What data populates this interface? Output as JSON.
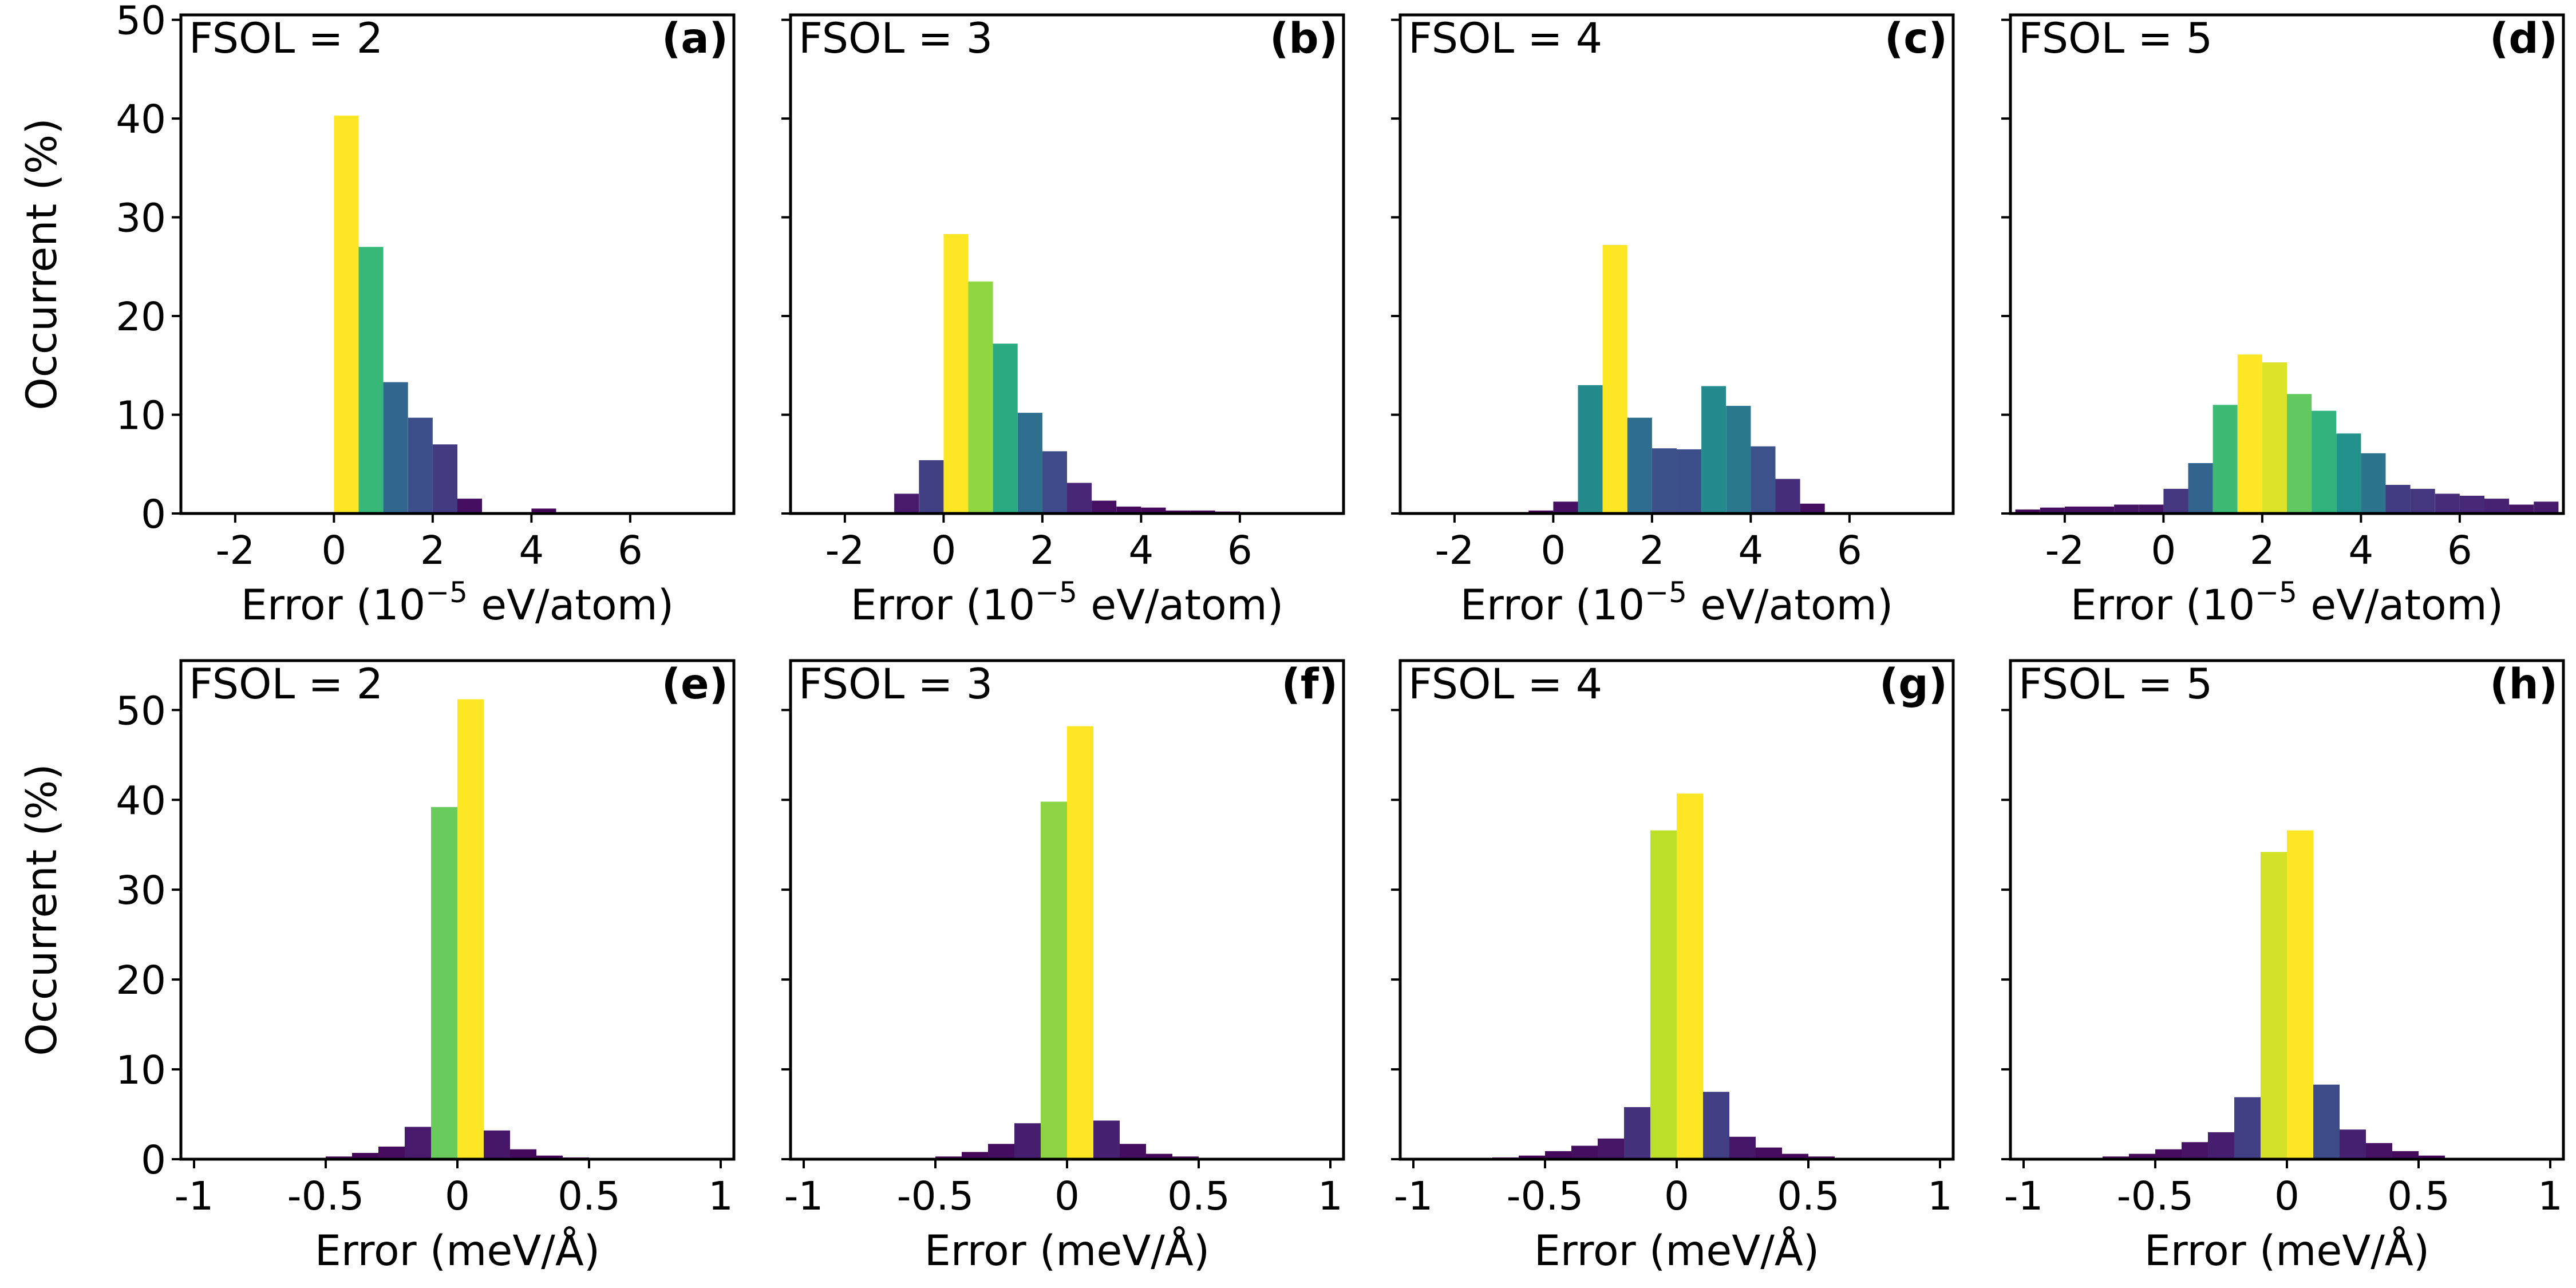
{
  "chart_data": [
    {
      "id": "a",
      "type": "bar",
      "annotation": "FSOL = 2",
      "panel_label": "(a)",
      "xlabel_prefix": "Error (10",
      "xlabel_exp": "−5",
      "xlabel_suffix": " eV/atom)",
      "ylabel": "Occurrent (%)",
      "xlim": [
        -3.1,
        8.1
      ],
      "ylim": [
        0,
        50.5
      ],
      "xticks": [
        -2,
        0,
        2,
        4,
        6
      ],
      "xtick_labels": [
        "-2",
        "0",
        "2",
        "4",
        "6"
      ],
      "yticks": [
        0,
        10,
        20,
        30,
        40,
        50
      ],
      "ytick_labels": [
        "0",
        "10",
        "20",
        "30",
        "40",
        "50"
      ],
      "bin_width": 0.5,
      "bins": [
        [
          0.0,
          40.3
        ],
        [
          0.5,
          27.0
        ],
        [
          1.0,
          13.3
        ],
        [
          1.5,
          9.7
        ],
        [
          2.0,
          7.0
        ],
        [
          2.5,
          1.5
        ],
        [
          3.0,
          0.1
        ],
        [
          3.5,
          0.1
        ],
        [
          4.0,
          0.5
        ]
      ]
    },
    {
      "id": "b",
      "type": "bar",
      "annotation": "FSOL = 3",
      "panel_label": "(b)",
      "xlabel_prefix": "Error (10",
      "xlabel_exp": "−5",
      "xlabel_suffix": " eV/atom)",
      "ylabel": "",
      "xlim": [
        -3.1,
        8.1
      ],
      "ylim": [
        0,
        50.5
      ],
      "xticks": [
        -2,
        0,
        2,
        4,
        6
      ],
      "xtick_labels": [
        "-2",
        "0",
        "2",
        "4",
        "6"
      ],
      "yticks": [
        0,
        10,
        20,
        30,
        40,
        50
      ],
      "ytick_labels": [],
      "bin_width": 0.5,
      "bins": [
        [
          -1.0,
          2.0
        ],
        [
          -0.5,
          5.4
        ],
        [
          0.0,
          28.3
        ],
        [
          0.5,
          23.5
        ],
        [
          1.0,
          17.2
        ],
        [
          1.5,
          10.2
        ],
        [
          2.0,
          6.3
        ],
        [
          2.5,
          3.1
        ],
        [
          3.0,
          1.3
        ],
        [
          3.5,
          0.7
        ],
        [
          4.0,
          0.6
        ],
        [
          4.5,
          0.3
        ],
        [
          5.0,
          0.3
        ],
        [
          5.5,
          0.2
        ],
        [
          6.0,
          0.1
        ]
      ]
    },
    {
      "id": "c",
      "type": "bar",
      "annotation": "FSOL = 4",
      "panel_label": "(c)",
      "xlabel_prefix": "Error (10",
      "xlabel_exp": "−5",
      "xlabel_suffix": " eV/atom)",
      "ylabel": "",
      "xlim": [
        -3.1,
        8.1
      ],
      "ylim": [
        0,
        50.5
      ],
      "xticks": [
        -2,
        0,
        2,
        4,
        6
      ],
      "xtick_labels": [
        "-2",
        "0",
        "2",
        "4",
        "6"
      ],
      "yticks": [
        0,
        10,
        20,
        30,
        40,
        50
      ],
      "ytick_labels": [],
      "bin_width": 0.5,
      "bins": [
        [
          -0.5,
          0.3
        ],
        [
          0.0,
          1.2
        ],
        [
          0.5,
          13.0
        ],
        [
          1.0,
          27.2
        ],
        [
          1.5,
          9.7
        ],
        [
          2.0,
          6.6
        ],
        [
          2.5,
          6.5
        ],
        [
          3.0,
          12.9
        ],
        [
          3.5,
          10.9
        ],
        [
          4.0,
          6.8
        ],
        [
          4.5,
          3.5
        ],
        [
          5.0,
          1.0
        ]
      ]
    },
    {
      "id": "d",
      "type": "bar",
      "annotation": "FSOL = 5",
      "panel_label": "(d)",
      "xlabel_prefix": "Error (10",
      "xlabel_exp": "−5",
      "xlabel_suffix": " eV/atom)",
      "ylabel": "",
      "xlim": [
        -3.1,
        8.1
      ],
      "ylim": [
        0,
        50.5
      ],
      "xticks": [
        -2,
        0,
        2,
        4,
        6
      ],
      "xtick_labels": [
        "-2",
        "0",
        "2",
        "4",
        "6"
      ],
      "yticks": [
        0,
        10,
        20,
        30,
        40,
        50
      ],
      "ytick_labels": [],
      "bin_width": 0.5,
      "bins": [
        [
          -3.0,
          0.4
        ],
        [
          -2.5,
          0.6
        ],
        [
          -2.0,
          0.7
        ],
        [
          -1.5,
          0.7
        ],
        [
          -1.0,
          0.9
        ],
        [
          -0.5,
          0.9
        ],
        [
          0.0,
          2.5
        ],
        [
          0.5,
          5.1
        ],
        [
          1.0,
          11.0
        ],
        [
          1.5,
          16.1
        ],
        [
          2.0,
          15.3
        ],
        [
          2.5,
          12.1
        ],
        [
          3.0,
          10.4
        ],
        [
          3.5,
          8.1
        ],
        [
          4.0,
          6.1
        ],
        [
          4.5,
          2.9
        ],
        [
          5.0,
          2.5
        ],
        [
          5.5,
          2.0
        ],
        [
          6.0,
          1.8
        ],
        [
          6.5,
          1.5
        ],
        [
          7.0,
          0.9
        ],
        [
          7.5,
          1.2
        ]
      ]
    },
    {
      "id": "e",
      "type": "bar",
      "annotation": "FSOL = 2",
      "panel_label": "(e)",
      "xlabel": "Error (meV/Å)",
      "ylabel": "Occurrent (%)",
      "xlim": [
        -1.05,
        1.05
      ],
      "ylim": [
        0,
        55.5
      ],
      "xticks": [
        -1,
        -0.5,
        0,
        0.5,
        1
      ],
      "xtick_labels": [
        "-1",
        "-0.5",
        "0",
        "0.5",
        "1"
      ],
      "yticks": [
        0,
        10,
        20,
        30,
        40,
        50
      ],
      "ytick_labels": [
        "0",
        "10",
        "20",
        "30",
        "40",
        "50"
      ],
      "bin_width": 0.1,
      "bins": [
        [
          -0.6,
          0.1
        ],
        [
          -0.5,
          0.3
        ],
        [
          -0.4,
          0.7
        ],
        [
          -0.3,
          1.4
        ],
        [
          -0.2,
          3.6
        ],
        [
          -0.1,
          39.2
        ],
        [
          0.0,
          51.2
        ],
        [
          0.1,
          3.2
        ],
        [
          0.2,
          1.1
        ],
        [
          0.3,
          0.4
        ],
        [
          0.4,
          0.2
        ],
        [
          0.5,
          0.1
        ]
      ]
    },
    {
      "id": "f",
      "type": "bar",
      "annotation": "FSOL = 3",
      "panel_label": "(f)",
      "xlabel": "Error (meV/Å)",
      "ylabel": "",
      "xlim": [
        -1.05,
        1.05
      ],
      "ylim": [
        0,
        55.5
      ],
      "xticks": [
        -1,
        -0.5,
        0,
        0.5,
        1
      ],
      "xtick_labels": [
        "-1",
        "-0.5",
        "0",
        "0.5",
        "1"
      ],
      "yticks": [
        0,
        10,
        20,
        30,
        40,
        50
      ],
      "ytick_labels": [],
      "bin_width": 0.1,
      "bins": [
        [
          -0.6,
          0.1
        ],
        [
          -0.5,
          0.3
        ],
        [
          -0.4,
          0.8
        ],
        [
          -0.3,
          1.7
        ],
        [
          -0.2,
          4.0
        ],
        [
          -0.1,
          39.8
        ],
        [
          0.0,
          48.2
        ],
        [
          0.1,
          4.3
        ],
        [
          0.2,
          1.7
        ],
        [
          0.3,
          0.6
        ],
        [
          0.4,
          0.3
        ],
        [
          0.5,
          0.1
        ]
      ]
    },
    {
      "id": "g",
      "type": "bar",
      "annotation": "FSOL = 4",
      "panel_label": "(g)",
      "xlabel": "Error (meV/Å)",
      "ylabel": "",
      "xlim": [
        -1.05,
        1.05
      ],
      "ylim": [
        0,
        55.5
      ],
      "xticks": [
        -1,
        -0.5,
        0,
        0.5,
        1
      ],
      "xtick_labels": [
        "-1",
        "-0.5",
        "0",
        "0.5",
        "1"
      ],
      "yticks": [
        0,
        10,
        20,
        30,
        40,
        50
      ],
      "ytick_labels": [],
      "bin_width": 0.1,
      "bins": [
        [
          -0.7,
          0.2
        ],
        [
          -0.6,
          0.4
        ],
        [
          -0.5,
          0.9
        ],
        [
          -0.4,
          1.5
        ],
        [
          -0.3,
          2.3
        ],
        [
          -0.2,
          5.8
        ],
        [
          -0.1,
          36.6
        ],
        [
          0.0,
          40.7
        ],
        [
          0.1,
          7.5
        ],
        [
          0.2,
          2.5
        ],
        [
          0.3,
          1.3
        ],
        [
          0.4,
          0.6
        ],
        [
          0.5,
          0.3
        ],
        [
          0.6,
          0.1
        ]
      ]
    },
    {
      "id": "h",
      "type": "bar",
      "annotation": "FSOL = 5",
      "panel_label": "(h)",
      "xlabel": "Error (meV/Å)",
      "ylabel": "",
      "xlim": [
        -1.05,
        1.05
      ],
      "ylim": [
        0,
        55.5
      ],
      "xticks": [
        -1,
        -0.5,
        0,
        0.5,
        1
      ],
      "xtick_labels": [
        "-1",
        "-0.5",
        "0",
        "0.5",
        "1"
      ],
      "yticks": [
        0,
        10,
        20,
        30,
        40,
        50
      ],
      "ytick_labels": [],
      "bin_width": 0.1,
      "bins": [
        [
          -0.8,
          0.1
        ],
        [
          -0.7,
          0.3
        ],
        [
          -0.6,
          0.6
        ],
        [
          -0.5,
          1.1
        ],
        [
          -0.4,
          1.9
        ],
        [
          -0.3,
          3.0
        ],
        [
          -0.2,
          6.9
        ],
        [
          -0.1,
          34.2
        ],
        [
          0.0,
          36.6
        ],
        [
          0.1,
          8.3
        ],
        [
          0.2,
          3.3
        ],
        [
          0.3,
          1.8
        ],
        [
          0.4,
          0.9
        ],
        [
          0.5,
          0.4
        ],
        [
          0.6,
          0.1
        ]
      ]
    }
  ]
}
